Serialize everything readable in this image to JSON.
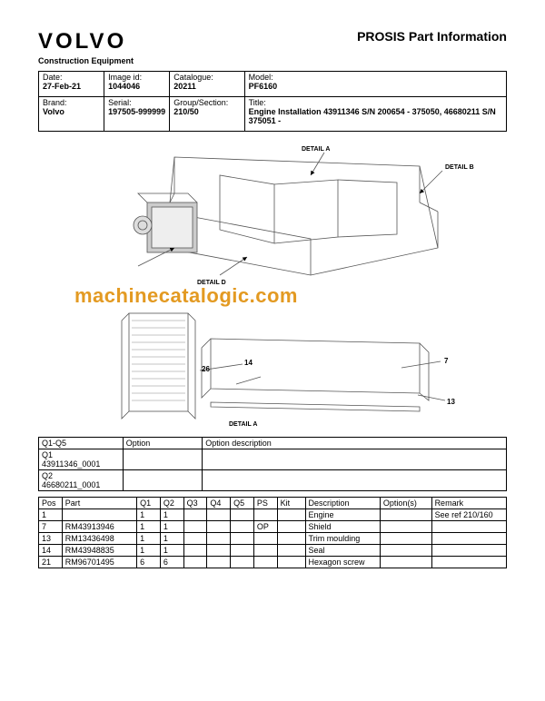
{
  "header": {
    "brand": "VOLVO",
    "page_title": "PROSIS Part Information",
    "subbrand": "Construction Equipment"
  },
  "info": {
    "date_label": "Date:",
    "date_value": "27-Feb-21",
    "image_id_label": "Image id:",
    "image_id_value": "1044046",
    "catalogue_label": "Catalogue:",
    "catalogue_value": "20211",
    "model_label": "Model:",
    "model_value": "PF6160",
    "brand_label": "Brand:",
    "brand_value": "Volvo",
    "serial_label": "Serial:",
    "serial_value": "197505-999999",
    "group_label": "Group/Section:",
    "group_value": "210/50",
    "title_label": "Title:",
    "title_value": "Engine Installation 43911346 S/N 200654 - 375050, 46680211 S/N 375051 -"
  },
  "diagram": {
    "detail_a": "DETAIL A",
    "detail_b": "DETAIL B",
    "detail_d": "DETAIL D",
    "callouts": {
      "c7": "7",
      "c13": "13",
      "c14": "14",
      "c26": "26"
    },
    "watermark": "machinecatalogic.com",
    "stroke": "#555555",
    "fill": "#bbbbbb"
  },
  "options": {
    "head_q": "Q1-Q5",
    "head_option": "Option",
    "head_desc": "Option description",
    "rows": [
      {
        "q": "Q1",
        "code": "43911346_0001"
      },
      {
        "q": "Q2",
        "code": "46680211_0001"
      }
    ]
  },
  "parts": {
    "head": {
      "pos": "Pos",
      "part": "Part",
      "q1": "Q1",
      "q2": "Q2",
      "q3": "Q3",
      "q4": "Q4",
      "q5": "Q5",
      "ps": "PS",
      "kit": "Kit",
      "desc": "Description",
      "options": "Option(s)",
      "remark": "Remark"
    },
    "rows": [
      {
        "pos": "1",
        "part": "",
        "q1": "1",
        "q2": "1",
        "q3": "",
        "q4": "",
        "q5": "",
        "ps": "",
        "kit": "",
        "desc": "Engine",
        "options": "",
        "remark": "See ref 210/160"
      },
      {
        "pos": "7",
        "part": "RM43913946",
        "q1": "1",
        "q2": "1",
        "q3": "",
        "q4": "",
        "q5": "",
        "ps": "OP",
        "kit": "",
        "desc": "Shield",
        "options": "",
        "remark": ""
      },
      {
        "pos": "13",
        "part": "RM13436498",
        "q1": "1",
        "q2": "1",
        "q3": "",
        "q4": "",
        "q5": "",
        "ps": "",
        "kit": "",
        "desc": "Trim moulding",
        "options": "",
        "remark": ""
      },
      {
        "pos": "14",
        "part": "RM43948835",
        "q1": "1",
        "q2": "1",
        "q3": "",
        "q4": "",
        "q5": "",
        "ps": "",
        "kit": "",
        "desc": "Seal",
        "options": "",
        "remark": ""
      },
      {
        "pos": "21",
        "part": "RM96701495",
        "q1": "6",
        "q2": "6",
        "q3": "",
        "q4": "",
        "q5": "",
        "ps": "",
        "kit": "",
        "desc": "Hexagon screw",
        "options": "",
        "remark": ""
      }
    ]
  },
  "layout": {
    "info_col_widths": [
      "14%",
      "14%",
      "16%",
      "56%"
    ],
    "options_col_widths": [
      "18%",
      "17%",
      "65%"
    ],
    "parts_col_widths": [
      "5%",
      "16%",
      "5%",
      "5%",
      "5%",
      "5%",
      "5%",
      "5%",
      "6%",
      "16%",
      "11%",
      "16%"
    ]
  }
}
